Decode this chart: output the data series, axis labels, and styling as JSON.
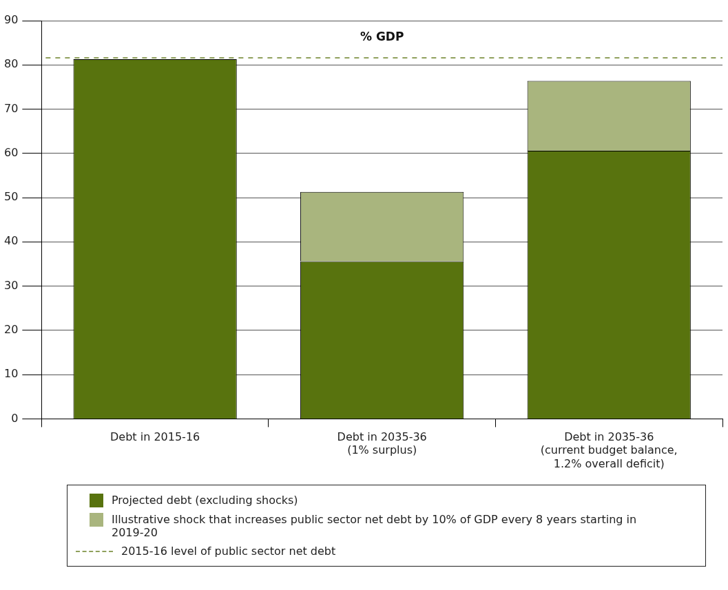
{
  "chart_data": {
    "type": "bar",
    "title": "% GDP",
    "categories": [
      "Debt in 2015-16",
      "Debt in 2035-36 (1% surplus)",
      "Debt in 2035-36 (current budget balance, 1.2% overall deficit)"
    ],
    "series": [
      {
        "name": "Projected debt (excluding shocks)",
        "color": "#58730e",
        "values": [
          81.3,
          35.6,
          60.6
        ]
      },
      {
        "name": "Illustrative shock that increases public sector net debt by 10% of GDP every 8 years starting in 2019-20",
        "color": "#a9b57e",
        "values": [
          null,
          15.7,
          15.8
        ]
      }
    ],
    "stacked": true,
    "ylim": [
      0,
      90
    ],
    "yticks": [
      0,
      10,
      20,
      30,
      40,
      50,
      60,
      70,
      80,
      90
    ],
    "grid": "y",
    "legend": "bottom",
    "ref_lines": [
      {
        "axis": "y",
        "value": 81.6,
        "label": "2015-16 level of public sector net debt",
        "color": "#8fa05c",
        "line_style": "dashed"
      }
    ]
  }
}
